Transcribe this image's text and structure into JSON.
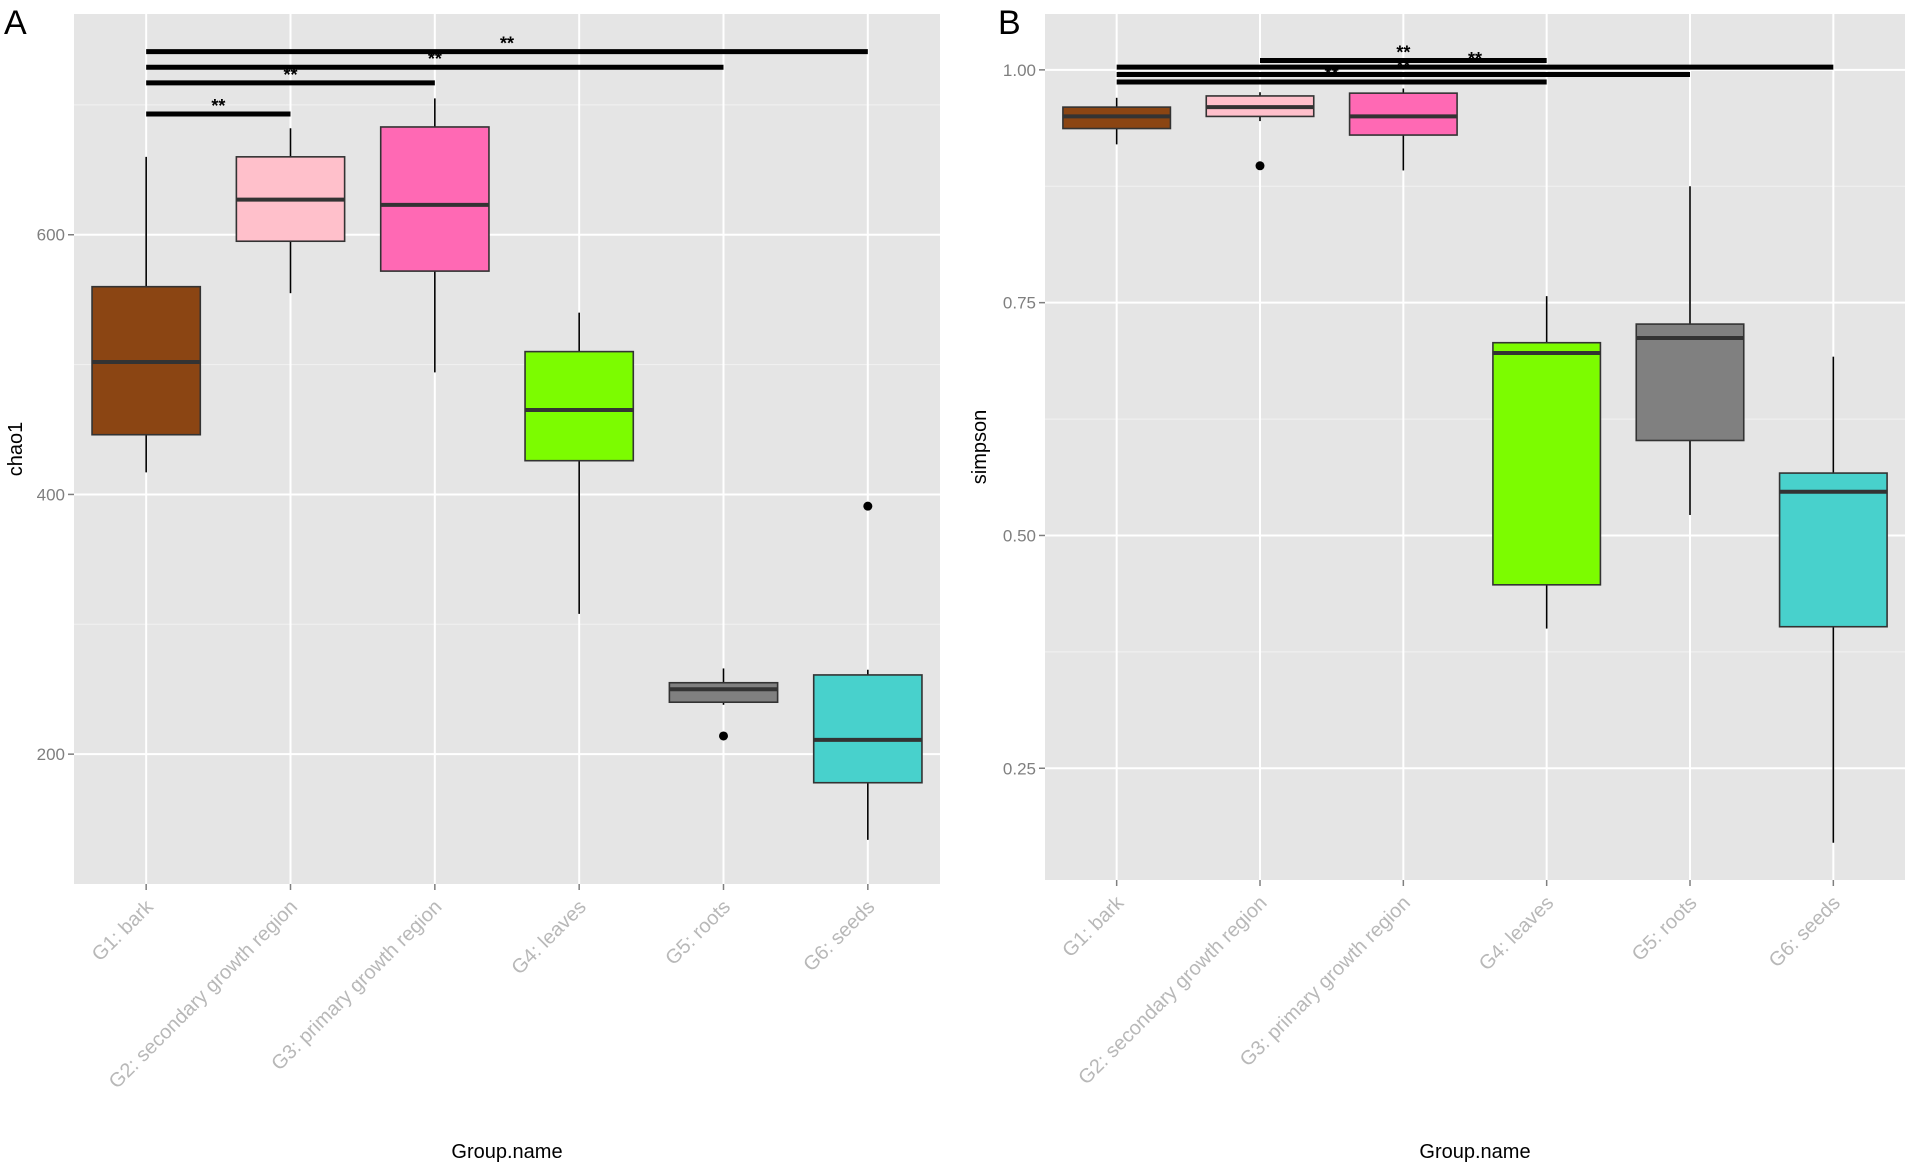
{
  "chart_data": [
    {
      "type": "box",
      "panel_label": "A",
      "xlabel": "Group.name",
      "ylabel": "chao1",
      "ylim": [
        100,
        770
      ],
      "yticks": [
        200,
        400,
        600
      ],
      "grid": true,
      "categories": [
        "G1: bark",
        "G2: secondary growth region",
        "G3: primary growth region",
        "G4: leaves",
        "G5: roots",
        "G6: seeds"
      ],
      "colors": [
        "#8B4513",
        "#FFC0CB",
        "#FF69B4",
        "#7CFC00",
        "#808080",
        "#48D1CC"
      ],
      "boxes": [
        {
          "lower": 417,
          "q1": 446,
          "median": 502,
          "q3": 560,
          "upper": 660,
          "outliers": []
        },
        {
          "lower": 555,
          "q1": 595,
          "median": 627,
          "q3": 660,
          "upper": 682,
          "outliers": []
        },
        {
          "lower": 494,
          "q1": 572,
          "median": 623,
          "q3": 683,
          "upper": 705,
          "outliers": []
        },
        {
          "lower": 308,
          "q1": 426,
          "median": 465,
          "q3": 510,
          "upper": 540,
          "outliers": []
        },
        {
          "lower": 238,
          "q1": 240,
          "median": 250,
          "q3": 255,
          "upper": 266,
          "outliers": [
            214
          ]
        },
        {
          "lower": 134,
          "q1": 178,
          "median": 211,
          "q3": 261,
          "upper": 265,
          "outliers": [
            391
          ]
        }
      ],
      "annotations": [
        {
          "from": 0,
          "to": 1,
          "value": 693,
          "label": "**"
        },
        {
          "from": 0,
          "to": 2,
          "value": 717,
          "label": "**"
        },
        {
          "from": 0,
          "to": 4,
          "value": 729,
          "label": "**"
        },
        {
          "from": 0,
          "to": 5,
          "value": 741,
          "label": "**"
        }
      ]
    },
    {
      "type": "box",
      "panel_label": "B",
      "xlabel": "Group.name",
      "ylabel": "simpson",
      "ylim": [
        0.13,
        1.06
      ],
      "yticks": [
        "0.25",
        "0.50",
        "0.75",
        "1.00"
      ],
      "grid": true,
      "categories": [
        "G1: bark",
        "G2: secondary growth region",
        "G3: primary growth region",
        "G4: leaves",
        "G5: roots",
        "G6: seeds"
      ],
      "colors": [
        "#8B4513",
        "#FFC0CB",
        "#FF69B4",
        "#7CFC00",
        "#808080",
        "#48D1CC"
      ],
      "boxes": [
        {
          "lower": 0.92,
          "q1": 0.937,
          "median": 0.95,
          "q3": 0.96,
          "upper": 0.97,
          "outliers": []
        },
        {
          "lower": 0.945,
          "q1": 0.95,
          "median": 0.96,
          "q3": 0.972,
          "upper": 0.976,
          "outliers": [
            0.897
          ]
        },
        {
          "lower": 0.892,
          "q1": 0.93,
          "median": 0.95,
          "q3": 0.975,
          "upper": 0.98,
          "outliers": []
        },
        {
          "lower": 0.4,
          "q1": 0.447,
          "median": 0.696,
          "q3": 0.707,
          "upper": 0.757,
          "outliers": []
        },
        {
          "lower": 0.522,
          "q1": 0.602,
          "median": 0.712,
          "q3": 0.727,
          "upper": 0.875,
          "outliers": []
        },
        {
          "lower": 0.17,
          "q1": 0.402,
          "median": 0.547,
          "q3": 0.567,
          "upper": 0.692,
          "outliers": []
        }
      ],
      "annotations": [
        {
          "from": 1,
          "to": 3,
          "value": 1.01,
          "label": "**"
        },
        {
          "from": 0,
          "to": 5,
          "value": 1.003,
          "label": "**"
        },
        {
          "from": 0,
          "to": 4,
          "value": 0.995,
          "label": "**"
        },
        {
          "from": 0,
          "to": 3,
          "value": 0.987,
          "label": "**"
        }
      ]
    }
  ]
}
